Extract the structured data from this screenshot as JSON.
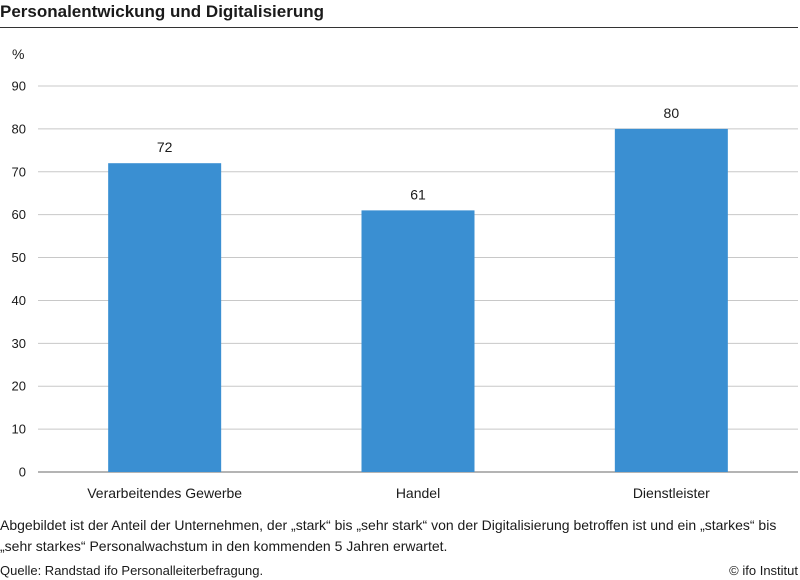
{
  "title": "Personalentwickung und Digitalisierung",
  "unit": "%",
  "note": "Abgebildet ist der Anteil der Unternehmen, der „stark“ bis „sehr stark“ von der Digitalisierung betroffen ist und ein „starkes“ bis „sehr starkes“ Personalwachstum in den kommenden 5 Jahren erwartet.",
  "source": "Quelle: Randstad ifo Personalleiterbefragung.",
  "credit": "© ifo Institut",
  "colors": {
    "bar": "#3a8fd2",
    "grid": "#c8c8c8",
    "axis": "#888888"
  },
  "chart_data": {
    "type": "bar",
    "title": "Personalentwickung und Digitalisierung",
    "xlabel": "",
    "ylabel": "%",
    "categories": [
      "Verarbeitendes Gewerbe",
      "Handel",
      "Dienstleister"
    ],
    "values": [
      72,
      61,
      80
    ],
    "ylim": [
      0,
      90
    ],
    "yticks": [
      0,
      10,
      20,
      30,
      40,
      50,
      60,
      70,
      80,
      90
    ],
    "grid": true,
    "legend": "none"
  }
}
